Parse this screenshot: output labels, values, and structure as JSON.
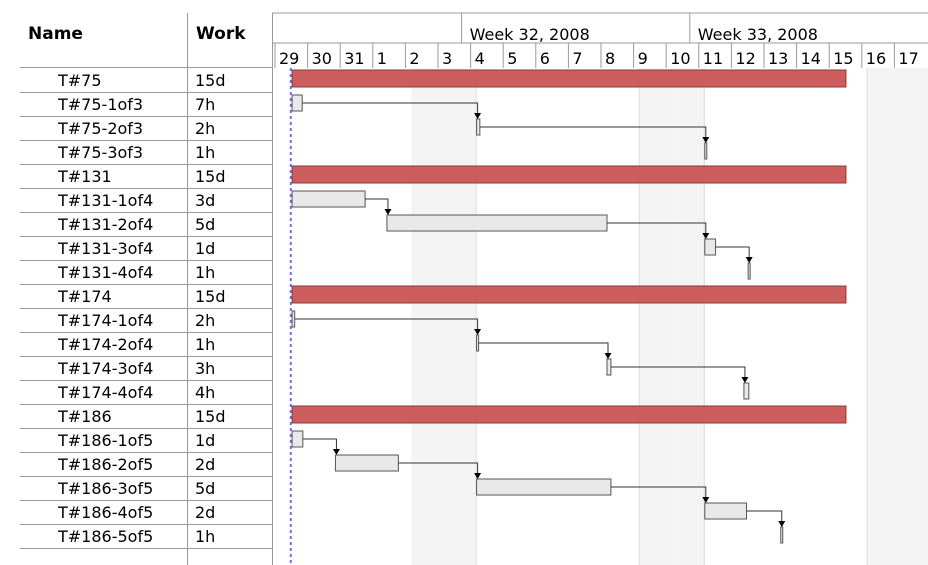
{
  "table": {
    "name_header": "Name",
    "work_header": "Work"
  },
  "colors": {
    "summary_bar": "#cd5c5c",
    "task_bar": "#e9e9e9",
    "weekend_shade": "#f4f4f4",
    "today_line": "#6f6fe0"
  },
  "chart_data": {
    "type": "gantt",
    "weeks": [
      {
        "label": "Week 32, 2008",
        "start_index": 6
      },
      {
        "label": "Week 33, 2008",
        "start_index": 13
      }
    ],
    "days": [
      "29",
      "30",
      "31",
      "1",
      "2",
      "3",
      "4",
      "5",
      "6",
      "7",
      "8",
      "9",
      "10",
      "11",
      "12",
      "13",
      "14",
      "15",
      "16",
      "17"
    ],
    "weekend_day_indices": [
      4,
      5,
      11,
      12,
      18,
      19
    ],
    "today_index": 0.3,
    "rows": [
      {
        "name": "T#75",
        "work": "15d",
        "type": "summary",
        "start": 0.34,
        "end": 17.33
      },
      {
        "name": "T#75-1of3",
        "work": "7h",
        "type": "task",
        "start": 0.34,
        "end": 0.65
      },
      {
        "name": "T#75-2of3",
        "work": "2h",
        "type": "task",
        "start": 6.0,
        "end": 6.1
      },
      {
        "name": "T#75-3of3",
        "work": "1h",
        "type": "task",
        "start": 13.0,
        "end": 13.05
      },
      {
        "name": "T#131",
        "work": "15d",
        "type": "summary",
        "start": 0.34,
        "end": 17.33
      },
      {
        "name": "T#131-1of4",
        "work": "3d",
        "type": "task",
        "start": 0.34,
        "end": 2.58
      },
      {
        "name": "T#131-2of4",
        "work": "5d",
        "type": "task",
        "start": 3.25,
        "end": 10.0
      },
      {
        "name": "T#131-3of4",
        "work": "1d",
        "type": "task",
        "start": 13.0,
        "end": 13.33
      },
      {
        "name": "T#131-4of4",
        "work": "1h",
        "type": "task",
        "start": 14.33,
        "end": 14.38
      },
      {
        "name": "T#174",
        "work": "15d",
        "type": "summary",
        "start": 0.34,
        "end": 17.33
      },
      {
        "name": "T#174-1of4",
        "work": "2h",
        "type": "task",
        "start": 0.34,
        "end": 0.42
      },
      {
        "name": "T#174-2of4",
        "work": "1h",
        "type": "task",
        "start": 6.0,
        "end": 6.05
      },
      {
        "name": "T#174-3of4",
        "work": "3h",
        "type": "task",
        "start": 10.0,
        "end": 10.12
      },
      {
        "name": "T#174-4of4",
        "work": "4h",
        "type": "task",
        "start": 14.2,
        "end": 14.35
      },
      {
        "name": "T#186",
        "work": "15d",
        "type": "summary",
        "start": 0.34,
        "end": 17.33
      },
      {
        "name": "T#186-1of5",
        "work": "1d",
        "type": "task",
        "start": 0.34,
        "end": 0.67
      },
      {
        "name": "T#186-2of5",
        "work": "2d",
        "type": "task",
        "start": 1.67,
        "end": 3.6
      },
      {
        "name": "T#186-3of5",
        "work": "5d",
        "type": "task",
        "start": 6.0,
        "end": 10.12
      },
      {
        "name": "T#186-4of5",
        "work": "2d",
        "type": "task",
        "start": 13.0,
        "end": 14.28
      },
      {
        "name": "T#186-5of5",
        "work": "1h",
        "type": "task",
        "start": 15.33,
        "end": 15.38
      }
    ],
    "dependencies": [
      [
        1,
        2
      ],
      [
        2,
        3
      ],
      [
        5,
        6
      ],
      [
        6,
        7
      ],
      [
        7,
        8
      ],
      [
        10,
        11
      ],
      [
        11,
        12
      ],
      [
        12,
        13
      ],
      [
        15,
        16
      ],
      [
        16,
        17
      ],
      [
        17,
        18
      ],
      [
        18,
        19
      ]
    ]
  }
}
